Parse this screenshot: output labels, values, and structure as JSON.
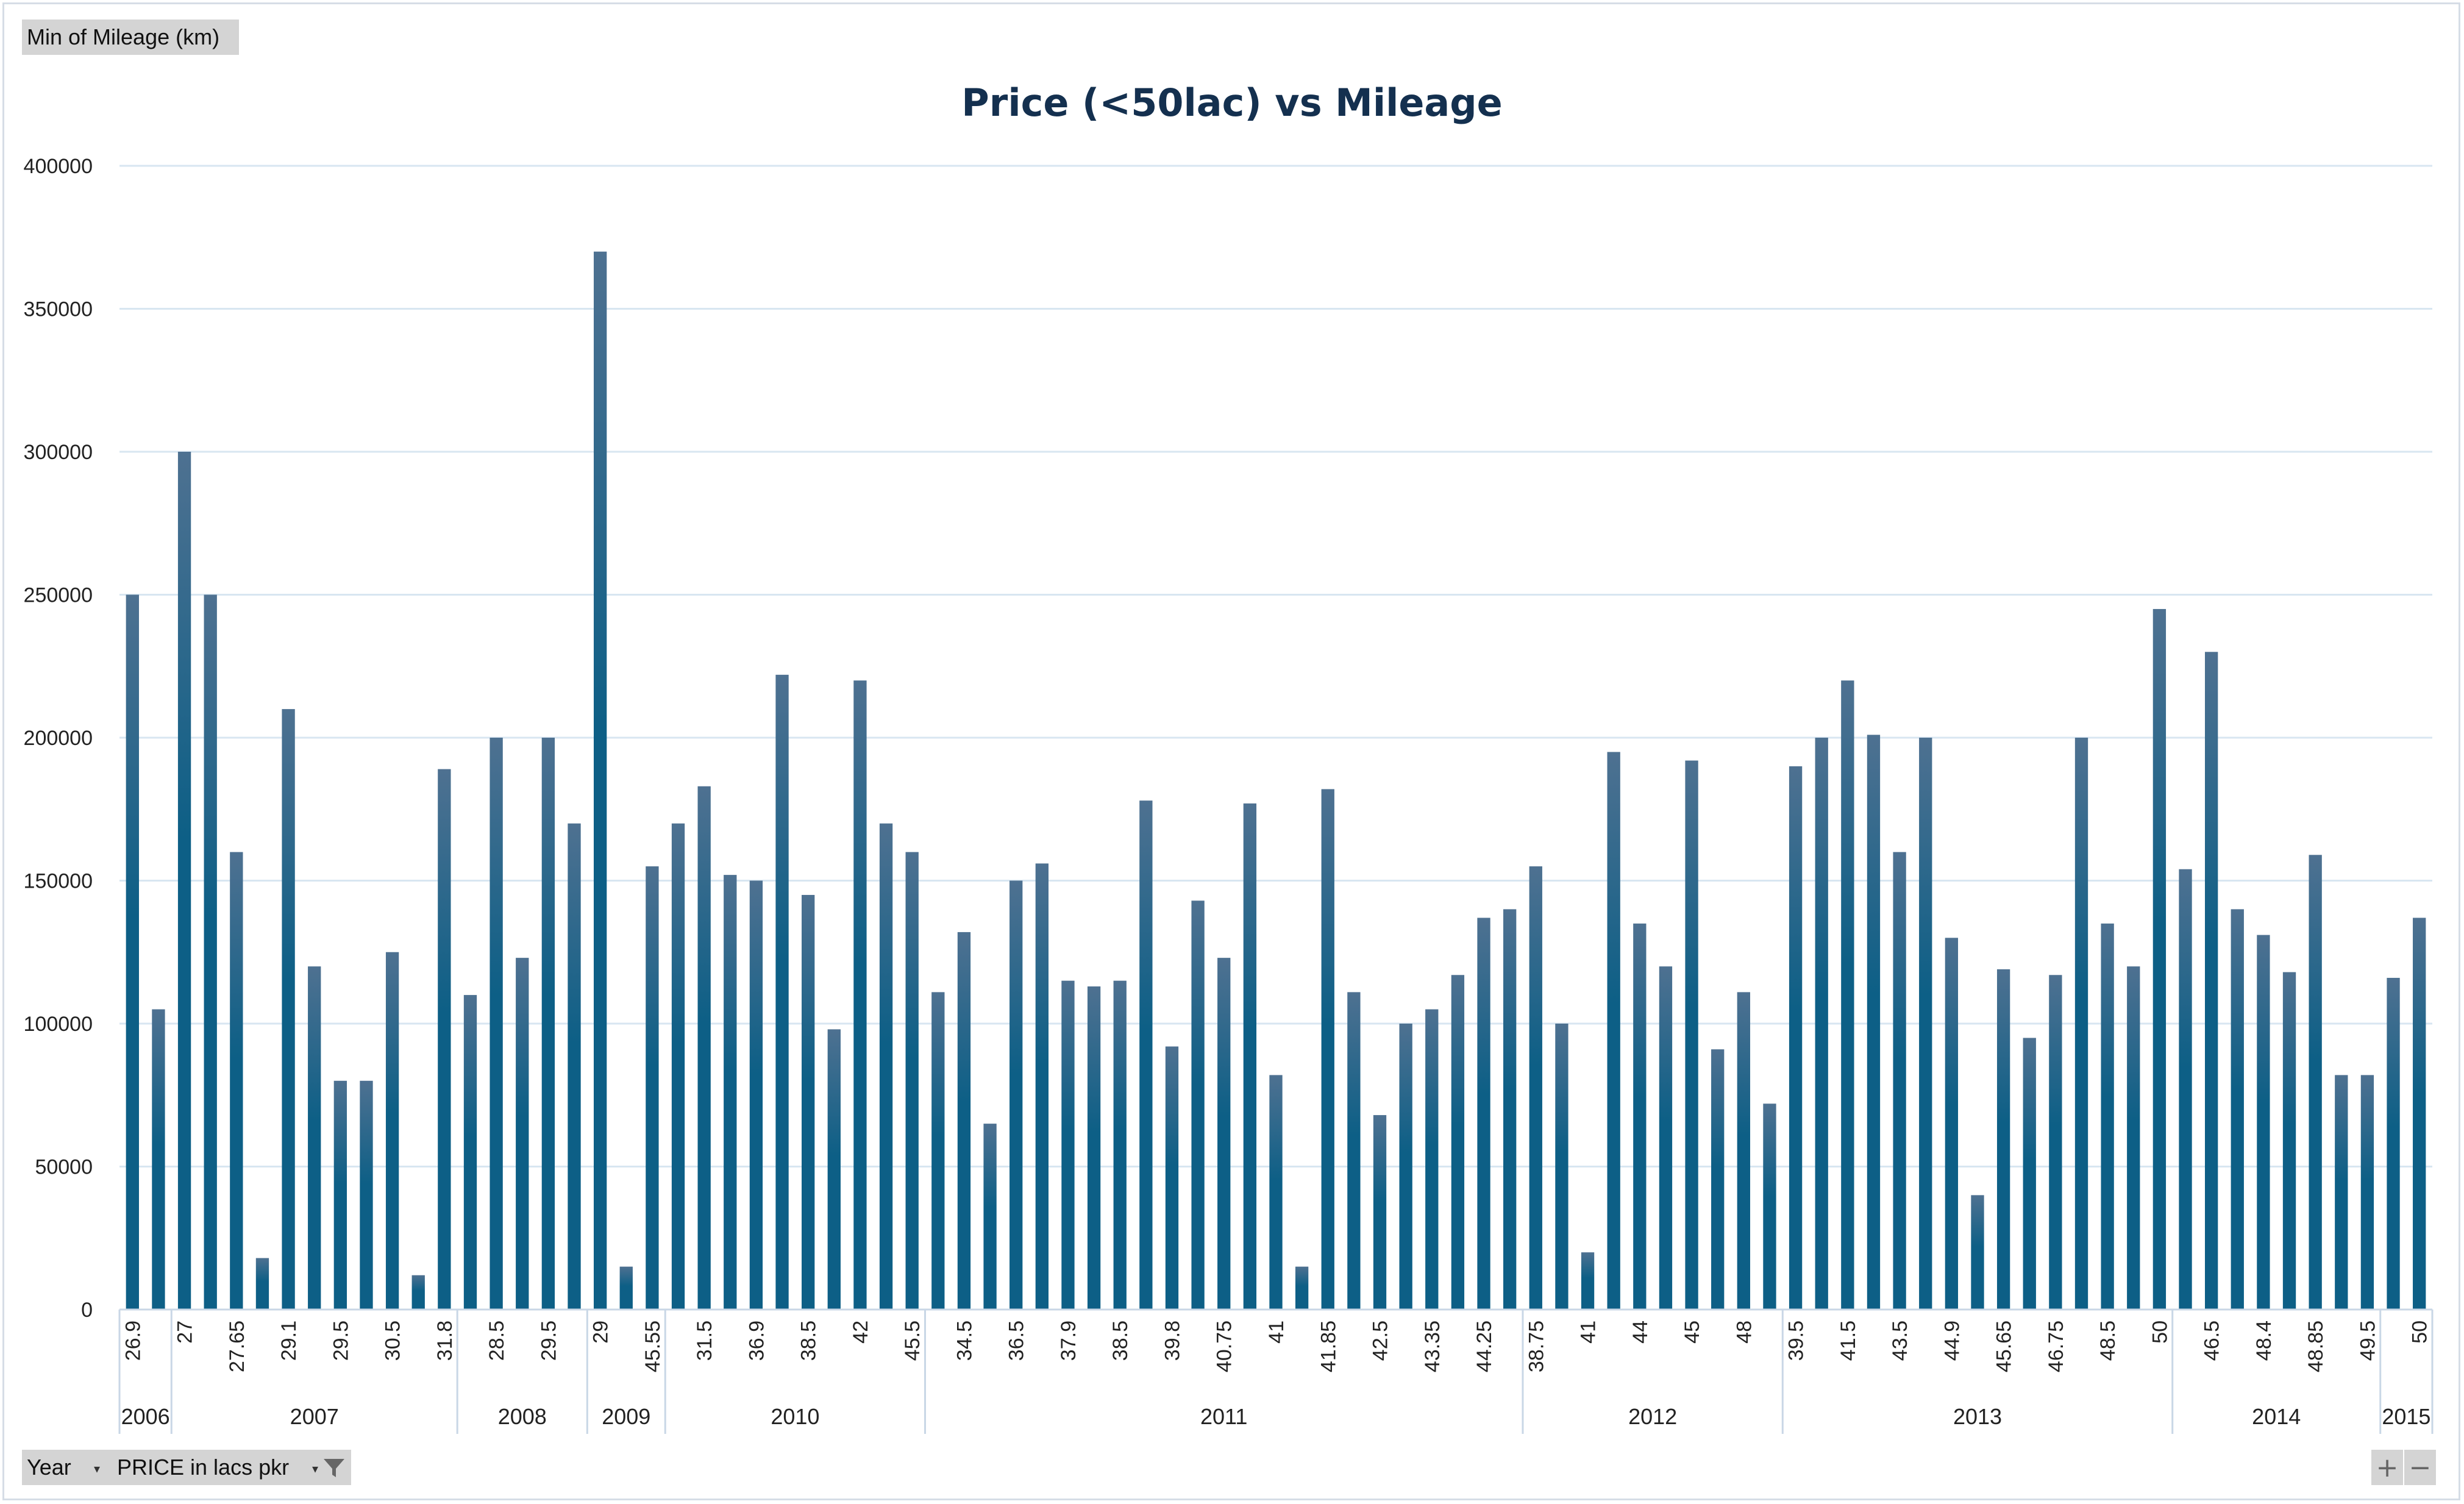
{
  "pivot": {
    "value_field": "Min of Mileage (km)",
    "row_fields": [
      {
        "label": "Year",
        "has_filter": false
      },
      {
        "label": "PRICE in lacs pkr",
        "has_filter": true
      }
    ],
    "zoom_in": "+",
    "zoom_out": "−"
  },
  "icons": {
    "dropdown": "dropdown-arrow-icon",
    "filter": "filter-funnel-icon"
  },
  "colors": {
    "bar_top": "#4e7191",
    "bar_bottom": "#0d5f86",
    "gridline": "#d8e6f1",
    "title": "#14304f"
  },
  "chart_data": {
    "type": "bar",
    "title": "Price (<50lac) vs Mileage",
    "ylim": [
      0,
      400000
    ],
    "yticks": [
      0,
      50000,
      100000,
      150000,
      200000,
      250000,
      300000,
      350000,
      400000
    ],
    "grid": true,
    "legend": "none",
    "groups": [
      {
        "year": "2006",
        "items": [
          {
            "label": "26.9",
            "value": 250000
          },
          {
            "label": "",
            "value": 105000
          }
        ]
      },
      {
        "year": "2007",
        "items": [
          {
            "label": "27",
            "value": 300000
          },
          {
            "label": "",
            "value": 250000
          },
          {
            "label": "27.65",
            "value": 160000
          },
          {
            "label": "",
            "value": 18000
          },
          {
            "label": "29.1",
            "value": 210000
          },
          {
            "label": "",
            "value": 120000
          },
          {
            "label": "29.5",
            "value": 80000
          },
          {
            "label": "",
            "value": 80000
          },
          {
            "label": "30.5",
            "value": 125000
          },
          {
            "label": "",
            "value": 12000
          },
          {
            "label": "31.8",
            "value": 189000
          }
        ]
      },
      {
        "year": "2008",
        "items": [
          {
            "label": "",
            "value": 110000
          },
          {
            "label": "28.5",
            "value": 200000
          },
          {
            "label": "",
            "value": 123000
          },
          {
            "label": "29.5",
            "value": 200000
          },
          {
            "label": "",
            "value": 170000
          }
        ]
      },
      {
        "year": "2009",
        "items": [
          {
            "label": "29",
            "value": 370000
          },
          {
            "label": "",
            "value": 15000
          },
          {
            "label": "45.55",
            "value": 155000
          }
        ]
      },
      {
        "year": "2010",
        "items": [
          {
            "label": "",
            "value": 170000
          },
          {
            "label": "31.5",
            "value": 183000
          },
          {
            "label": "",
            "value": 152000
          },
          {
            "label": "36.9",
            "value": 150000
          },
          {
            "label": "",
            "value": 222000
          },
          {
            "label": "38.5",
            "value": 145000
          },
          {
            "label": "",
            "value": 98000
          },
          {
            "label": "42",
            "value": 220000
          },
          {
            "label": "",
            "value": 170000
          },
          {
            "label": "45.5",
            "value": 160000
          }
        ]
      },
      {
        "year": "2011",
        "items": [
          {
            "label": "",
            "value": 111000
          },
          {
            "label": "34.5",
            "value": 132000
          },
          {
            "label": "",
            "value": 65000
          },
          {
            "label": "36.5",
            "value": 150000
          },
          {
            "label": "",
            "value": 156000
          },
          {
            "label": "37.9",
            "value": 115000
          },
          {
            "label": "",
            "value": 113000
          },
          {
            "label": "38.5",
            "value": 115000
          },
          {
            "label": "",
            "value": 178000
          },
          {
            "label": "39.8",
            "value": 92000
          },
          {
            "label": "",
            "value": 143000
          },
          {
            "label": "40.75",
            "value": 123000
          },
          {
            "label": "",
            "value": 177000
          },
          {
            "label": "41",
            "value": 82000
          },
          {
            "label": "",
            "value": 15000
          },
          {
            "label": "41.85",
            "value": 182000
          },
          {
            "label": "",
            "value": 111000
          },
          {
            "label": "42.5",
            "value": 68000
          },
          {
            "label": "",
            "value": 100000
          },
          {
            "label": "43.35",
            "value": 105000
          },
          {
            "label": "",
            "value": 117000
          },
          {
            "label": "44.25",
            "value": 137000
          },
          {
            "label": "",
            "value": 140000
          }
        ]
      },
      {
        "year": "2012",
        "items": [
          {
            "label": "38.75",
            "value": 155000
          },
          {
            "label": "",
            "value": 100000
          },
          {
            "label": "41",
            "value": 20000
          },
          {
            "label": "",
            "value": 195000
          },
          {
            "label": "44",
            "value": 135000
          },
          {
            "label": "",
            "value": 120000
          },
          {
            "label": "45",
            "value": 192000
          },
          {
            "label": "",
            "value": 91000
          },
          {
            "label": "48",
            "value": 111000
          },
          {
            "label": "",
            "value": 72000
          }
        ]
      },
      {
        "year": "2013",
        "items": [
          {
            "label": "39.5",
            "value": 190000
          },
          {
            "label": "",
            "value": 200000
          },
          {
            "label": "41.5",
            "value": 220000
          },
          {
            "label": "",
            "value": 201000
          },
          {
            "label": "43.5",
            "value": 160000
          },
          {
            "label": "",
            "value": 200000
          },
          {
            "label": "44.9",
            "value": 130000
          },
          {
            "label": "",
            "value": 40000
          },
          {
            "label": "45.65",
            "value": 119000
          },
          {
            "label": "",
            "value": 95000
          },
          {
            "label": "46.75",
            "value": 117000
          },
          {
            "label": "",
            "value": 200000
          },
          {
            "label": "48.5",
            "value": 135000
          },
          {
            "label": "",
            "value": 120000
          },
          {
            "label": "50",
            "value": 245000
          }
        ]
      },
      {
        "year": "2014",
        "items": [
          {
            "label": "",
            "value": 154000
          },
          {
            "label": "46.5",
            "value": 230000
          },
          {
            "label": "",
            "value": 140000
          },
          {
            "label": "48.4",
            "value": 131000
          },
          {
            "label": "",
            "value": 118000
          },
          {
            "label": "48.85",
            "value": 159000
          },
          {
            "label": "",
            "value": 82000
          },
          {
            "label": "49.5",
            "value": 82000
          }
        ]
      },
      {
        "year": "2015",
        "items": [
          {
            "label": "",
            "value": 116000
          },
          {
            "label": "50",
            "value": 137000
          }
        ]
      }
    ]
  }
}
